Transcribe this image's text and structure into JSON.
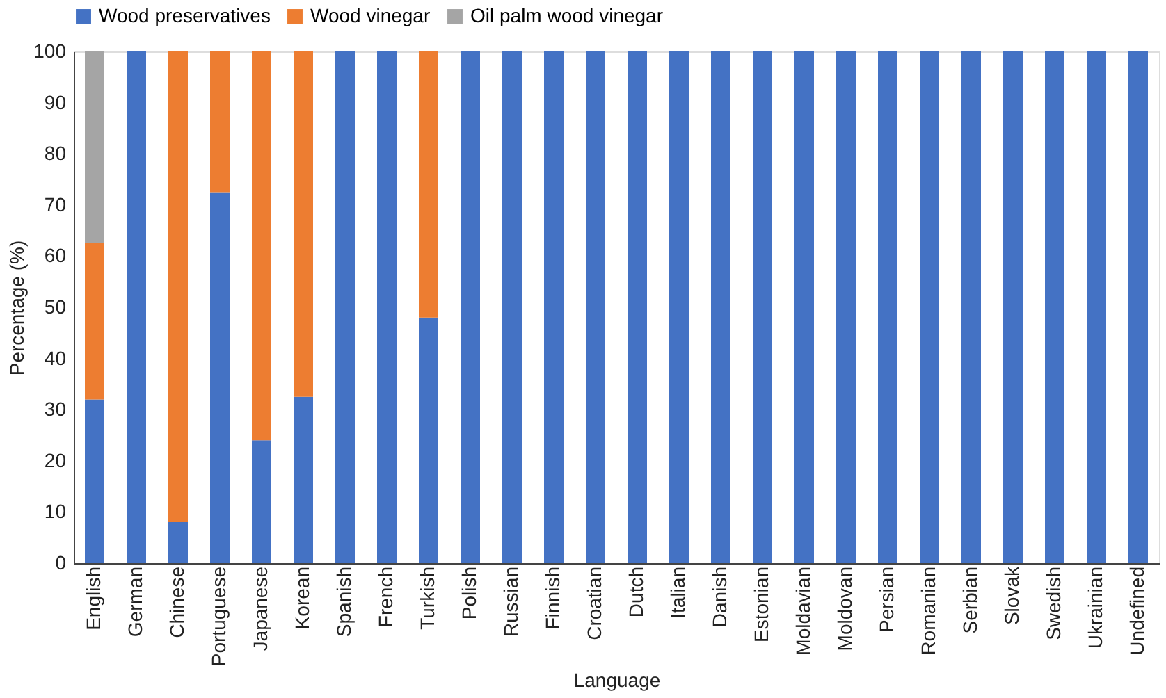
{
  "chart_data": {
    "type": "bar",
    "stacked": true,
    "xlabel": "Language",
    "ylabel": "Percentage (%)",
    "categories": [
      "English",
      "German",
      "Chinese",
      "Portuguese",
      "Japanese",
      "Korean",
      "Spanish",
      "French",
      "Turkish",
      "Polish",
      "Russian",
      "Finnish",
      "Croatian",
      "Dutch",
      "Italian",
      "Danish",
      "Estonian",
      "Moldavian",
      "Moldovan",
      "Persian",
      "Romanian",
      "Serbian",
      "Slovak",
      "Swedish",
      "Ukrainian",
      "Undefined"
    ],
    "series": [
      {
        "name": "Wood preservatives",
        "color": "#4472c4",
        "values": [
          32,
          100,
          8,
          72.5,
          24,
          32.5,
          100,
          100,
          48,
          100,
          100,
          100,
          100,
          100,
          100,
          100,
          100,
          100,
          100,
          100,
          100,
          100,
          100,
          100,
          100,
          100
        ]
      },
      {
        "name": "Wood vinegar",
        "color": "#ed7d31",
        "values": [
          30.5,
          0,
          92,
          27.5,
          76,
          67.5,
          0,
          0,
          52,
          0,
          0,
          0,
          0,
          0,
          0,
          0,
          0,
          0,
          0,
          0,
          0,
          0,
          0,
          0,
          0,
          0
        ]
      },
      {
        "name": "Oil palm wood vinegar",
        "color": "#a5a5a5",
        "values": [
          37.5,
          0,
          0,
          0,
          0,
          0,
          0,
          0,
          0,
          0,
          0,
          0,
          0,
          0,
          0,
          0,
          0,
          0,
          0,
          0,
          0,
          0,
          0,
          0,
          0,
          0
        ]
      }
    ],
    "ylim": [
      0,
      100
    ],
    "yticks": [
      0,
      10,
      20,
      30,
      40,
      50,
      60,
      70,
      80,
      90,
      100
    ],
    "grid": false,
    "legend": "top"
  }
}
